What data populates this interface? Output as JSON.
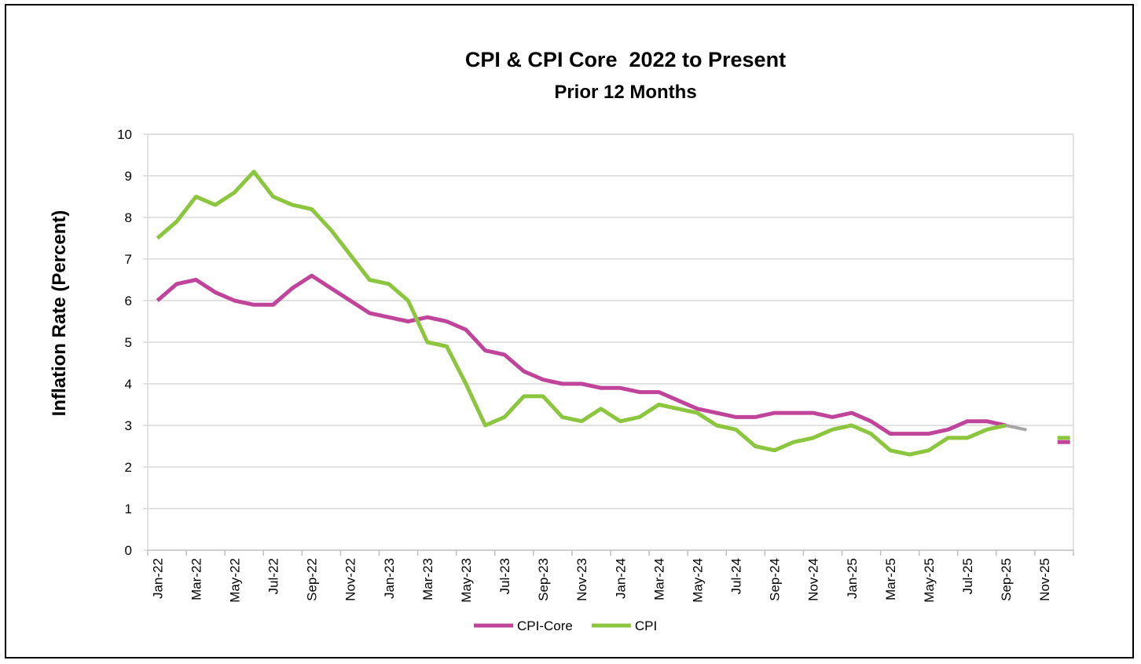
{
  "chart_data": {
    "type": "line",
    "title": "CPI & CPI Core  2022 to Present",
    "subtitle": "Prior 12 Months",
    "xlabel": "",
    "ylabel": "Inflation Rate (Percent)",
    "ylim": [
      0,
      10
    ],
    "yticks": [
      0,
      1,
      2,
      3,
      4,
      5,
      6,
      7,
      8,
      9,
      10
    ],
    "grid": true,
    "legend_position": "bottom",
    "categories": [
      "Jan-22",
      "Feb-22",
      "Mar-22",
      "Apr-22",
      "May-22",
      "Jun-22",
      "Jul-22",
      "Aug-22",
      "Sep-22",
      "Oct-22",
      "Nov-22",
      "Dec-22",
      "Jan-23",
      "Feb-23",
      "Mar-23",
      "Apr-23",
      "May-23",
      "Jun-23",
      "Jul-23",
      "Aug-23",
      "Sep-23",
      "Oct-23",
      "Nov-23",
      "Dec-23",
      "Jan-24",
      "Feb-24",
      "Mar-24",
      "Apr-24",
      "May-24",
      "Jun-24",
      "Jul-24",
      "Aug-24",
      "Sep-24",
      "Oct-24",
      "Nov-24",
      "Dec-24",
      "Jan-25",
      "Feb-25",
      "Mar-25",
      "Apr-25",
      "May-25",
      "Jun-25",
      "Jul-25",
      "Aug-25",
      "Sep-25",
      "Oct-25",
      "Nov-25",
      "Dec-25"
    ],
    "x_tick_labels": [
      "Jan-22",
      "Mar-22",
      "May-22",
      "Jul-22",
      "Sep-22",
      "Nov-22",
      "Jan-23",
      "Mar-23",
      "May-23",
      "Jul-23",
      "Sep-23",
      "Nov-23",
      "Jan-24",
      "Mar-24",
      "May-24",
      "Jul-24",
      "Sep-24",
      "Nov-24",
      "Jan-25",
      "Mar-25",
      "May-25",
      "Jul-25",
      "Sep-25",
      "Nov-25"
    ],
    "series": [
      {
        "name": "CPI-Core",
        "color": "#c1449b",
        "values": [
          6.0,
          6.4,
          6.5,
          6.2,
          6.0,
          5.9,
          5.9,
          6.3,
          6.6,
          6.3,
          6.0,
          5.7,
          5.6,
          5.5,
          5.6,
          5.5,
          5.3,
          4.8,
          4.7,
          4.3,
          4.1,
          4.0,
          4.0,
          3.9,
          3.9,
          3.8,
          3.8,
          3.6,
          3.4,
          3.3,
          3.2,
          3.2,
          3.3,
          3.3,
          3.3,
          3.2,
          3.3,
          3.1,
          2.8,
          2.8,
          2.8,
          2.9,
          3.1,
          3.1,
          3.0,
          null,
          null,
          2.6
        ]
      },
      {
        "name": "CPI",
        "color": "#8cc63e",
        "values": [
          7.5,
          7.9,
          8.5,
          8.3,
          8.6,
          9.1,
          8.5,
          8.3,
          8.2,
          7.7,
          7.1,
          6.5,
          6.4,
          6.0,
          5.0,
          4.9,
          4.0,
          3.0,
          3.2,
          3.7,
          3.7,
          3.2,
          3.1,
          3.4,
          3.1,
          3.2,
          3.5,
          3.4,
          3.3,
          3.0,
          2.9,
          2.5,
          2.4,
          2.6,
          2.7,
          2.9,
          3.0,
          2.8,
          2.4,
          2.3,
          2.4,
          2.7,
          2.7,
          2.9,
          3.0,
          null,
          null,
          2.7
        ]
      }
    ],
    "gap_segment": {
      "from_category": "Sep-25",
      "to_category": "Oct-25",
      "from_value": 3.0,
      "to_value": 2.9,
      "color": "#a6a6a6"
    }
  }
}
